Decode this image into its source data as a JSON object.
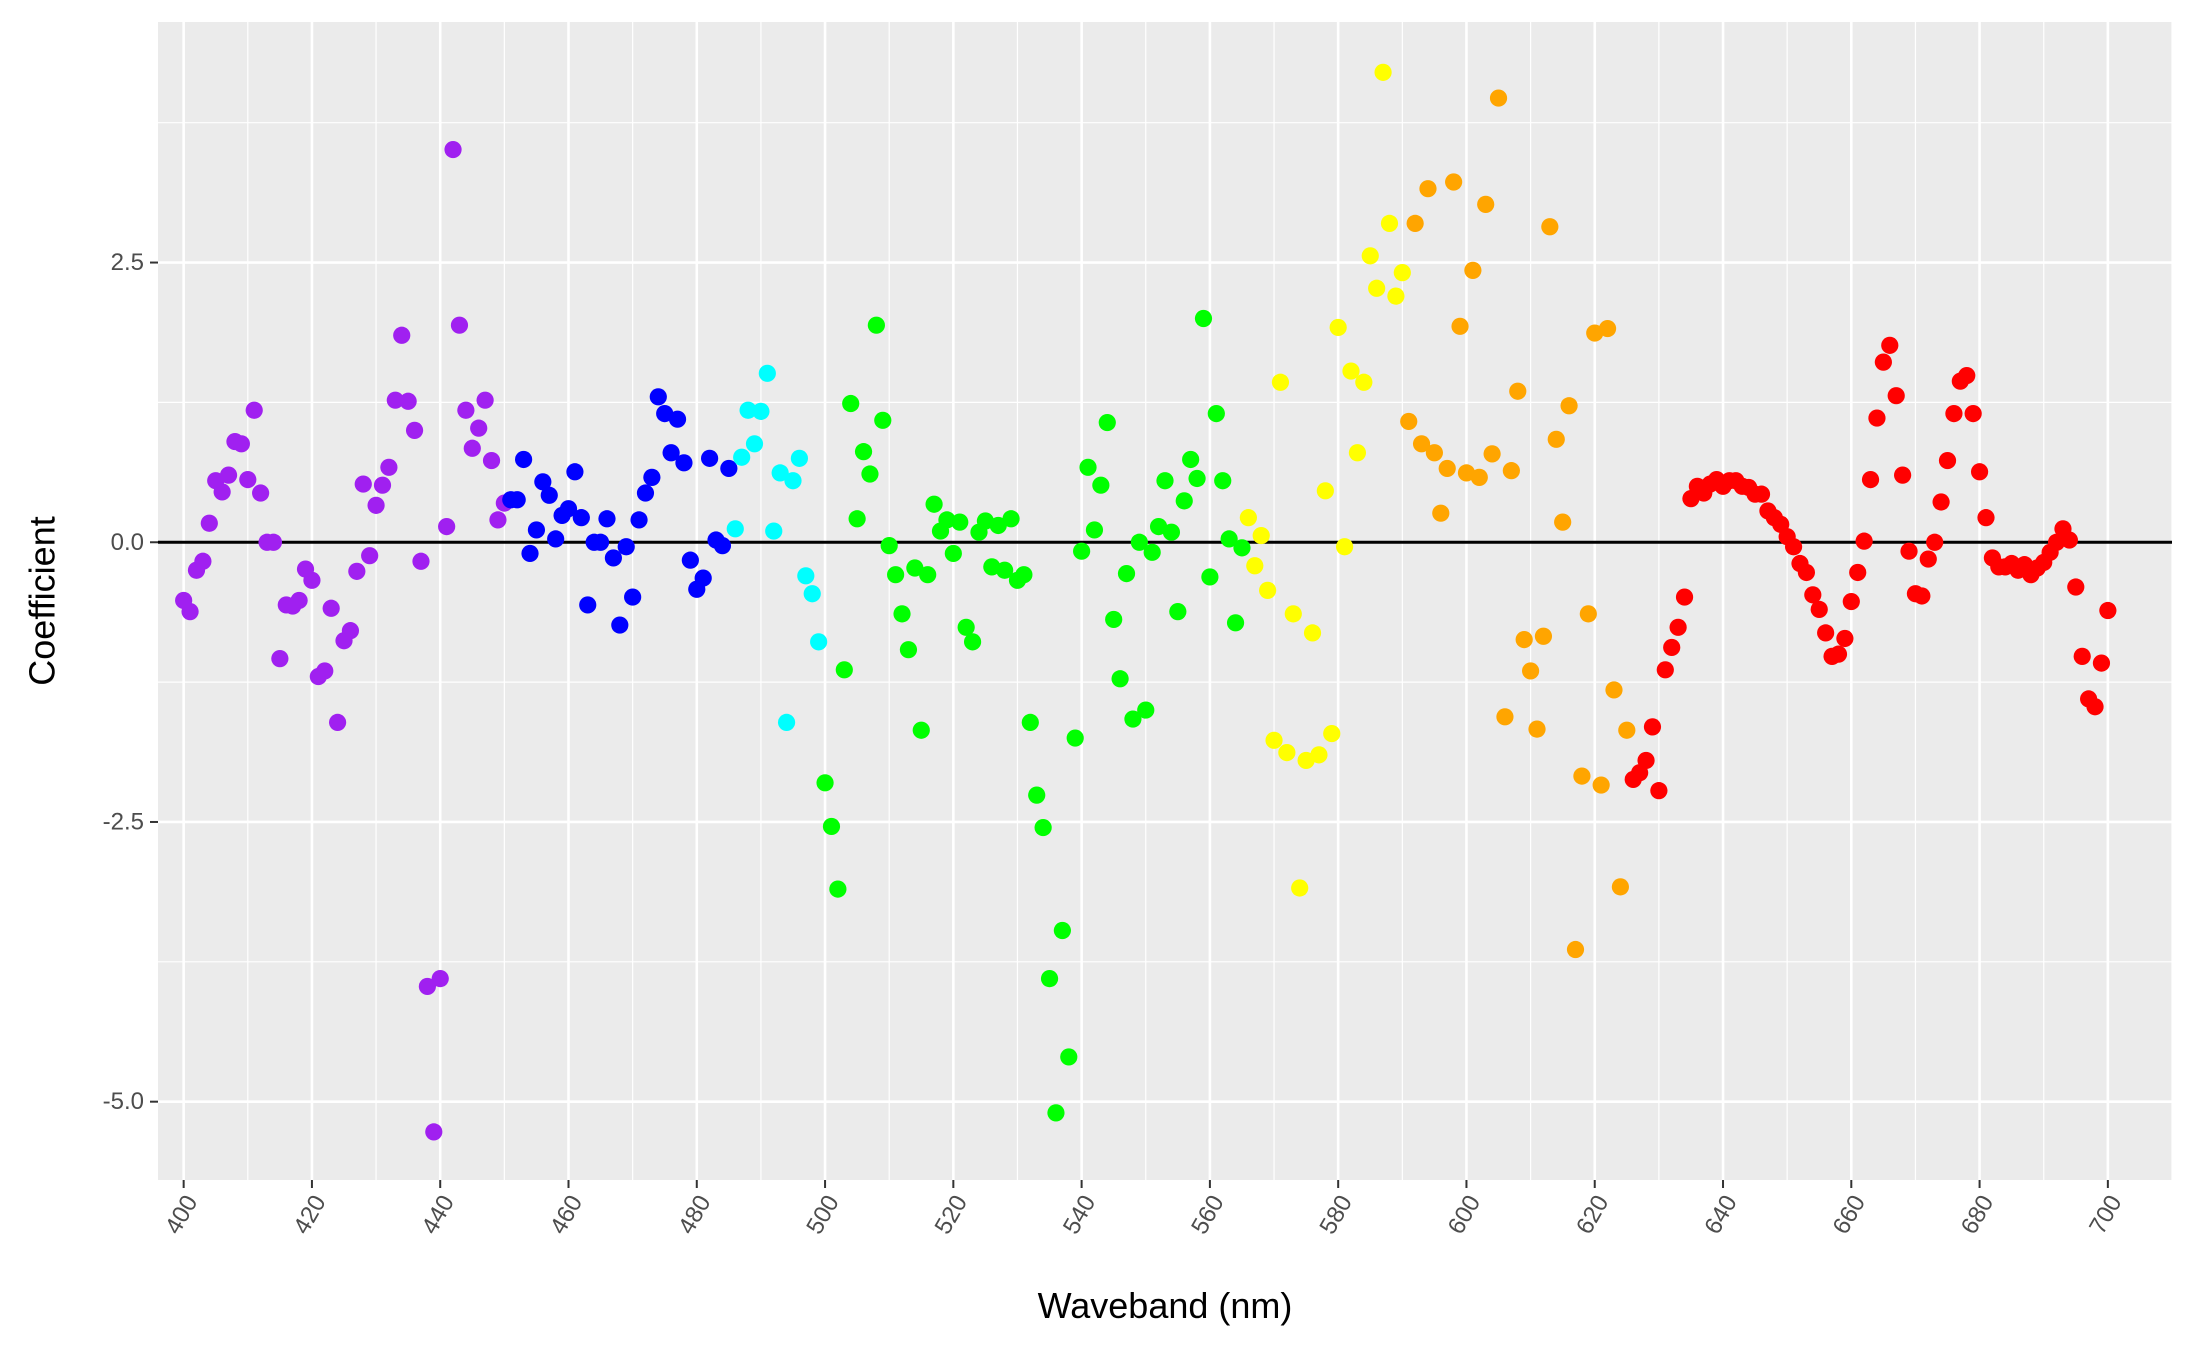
{
  "chart_data": {
    "type": "scatter",
    "title": "",
    "xlabel": "Waveband (nm)",
    "ylabel": "Coefficient",
    "xlim": [
      396,
      710
    ],
    "ylim": [
      -5.7,
      4.65
    ],
    "xticks": [
      400,
      420,
      440,
      460,
      480,
      500,
      520,
      540,
      560,
      580,
      600,
      620,
      640,
      660,
      680,
      700
    ],
    "xtick_labels": [
      "400",
      "420",
      "440",
      "460",
      "480",
      "500",
      "520",
      "540",
      "560",
      "580",
      "600",
      "620",
      "640",
      "660",
      "680",
      "700"
    ],
    "yticks": [
      -5.0,
      -2.5,
      0.0,
      2.5
    ],
    "ytick_labels": [
      "-5.0",
      "-2.5",
      "0.0",
      "2.5"
    ],
    "x_tick_rotation": -60,
    "grid": true,
    "background": "#ebebeb",
    "reference_line": {
      "y": 0,
      "color": "#000000"
    },
    "legend": "none",
    "color_bands": [
      {
        "from": 400,
        "to": 450,
        "color": "#a020f0"
      },
      {
        "from": 451,
        "to": 485,
        "color": "#0000ff"
      },
      {
        "from": 486,
        "to": 499,
        "color": "#00ffff"
      },
      {
        "from": 500,
        "to": 565,
        "color": "#00ff00"
      },
      {
        "from": 566,
        "to": 590,
        "color": "#ffff00"
      },
      {
        "from": 591,
        "to": 625,
        "color": "#ffa500"
      },
      {
        "from": 626,
        "to": 700,
        "color": "#ff0000"
      }
    ],
    "x": [
      400,
      401,
      402,
      403,
      404,
      405,
      406,
      407,
      408,
      409,
      410,
      411,
      412,
      413,
      414,
      415,
      416,
      417,
      418,
      419,
      420,
      421,
      422,
      423,
      424,
      425,
      426,
      427,
      428,
      429,
      430,
      431,
      432,
      433,
      434,
      435,
      436,
      437,
      438,
      439,
      440,
      441,
      442,
      443,
      444,
      445,
      446,
      447,
      448,
      449,
      450,
      451,
      452,
      453,
      454,
      455,
      456,
      457,
      458,
      459,
      460,
      461,
      462,
      463,
      464,
      465,
      466,
      467,
      468,
      469,
      470,
      471,
      472,
      473,
      474,
      475,
      476,
      477,
      478,
      479,
      480,
      481,
      482,
      483,
      484,
      485,
      486,
      487,
      488,
      489,
      490,
      491,
      492,
      493,
      494,
      495,
      496,
      497,
      498,
      499,
      500,
      501,
      502,
      503,
      504,
      505,
      506,
      507,
      508,
      509,
      510,
      511,
      512,
      513,
      514,
      515,
      516,
      517,
      518,
      519,
      520,
      521,
      522,
      523,
      524,
      525,
      526,
      527,
      528,
      529,
      530,
      531,
      532,
      533,
      534,
      535,
      536,
      537,
      538,
      539,
      540,
      541,
      542,
      543,
      544,
      545,
      546,
      547,
      548,
      549,
      550,
      551,
      552,
      553,
      554,
      555,
      556,
      557,
      558,
      559,
      560,
      561,
      562,
      563,
      564,
      565,
      566,
      567,
      568,
      569,
      570,
      571,
      572,
      573,
      574,
      575,
      576,
      577,
      578,
      579,
      580,
      581,
      582,
      583,
      584,
      585,
      586,
      587,
      588,
      589,
      590,
      591,
      592,
      593,
      594,
      595,
      596,
      597,
      598,
      599,
      600,
      601,
      602,
      603,
      604,
      605,
      606,
      607,
      608,
      609,
      610,
      611,
      612,
      613,
      614,
      615,
      616,
      617,
      618,
      619,
      620,
      621,
      622,
      623,
      624,
      625,
      626,
      627,
      628,
      629,
      630,
      631,
      632,
      633,
      634,
      635,
      636,
      637,
      638,
      639,
      640,
      641,
      642,
      643,
      644,
      645,
      646,
      647,
      648,
      649,
      650,
      651,
      652,
      653,
      654,
      655,
      656,
      657,
      658,
      659,
      660,
      661,
      662,
      663,
      664,
      665,
      666,
      667,
      668,
      669,
      670,
      671,
      672,
      673,
      674,
      675,
      676,
      677,
      678,
      679,
      680,
      681,
      682,
      683,
      684,
      685,
      686,
      687,
      688,
      689,
      690,
      691,
      692,
      693,
      694,
      695,
      696,
      697,
      698,
      699,
      700
    ],
    "y": [
      -0.52,
      -0.62,
      -0.25,
      -0.17,
      0.17,
      0.55,
      0.45,
      0.6,
      0.9,
      0.88,
      0.56,
      1.18,
      0.44,
      0.0,
      0.0,
      -1.04,
      -0.56,
      -0.57,
      -0.52,
      -0.24,
      -0.34,
      -1.2,
      -1.15,
      -0.59,
      -1.61,
      -0.88,
      -0.79,
      -0.26,
      0.52,
      -0.12,
      0.33,
      0.51,
      0.67,
      1.27,
      1.85,
      1.26,
      1.0,
      -0.17,
      -3.97,
      -5.27,
      -3.9,
      0.14,
      3.51,
      1.94,
      1.18,
      0.84,
      1.02,
      1.27,
      0.73,
      0.2,
      0.35,
      0.38,
      0.38,
      0.74,
      -0.1,
      0.11,
      0.54,
      0.42,
      0.03,
      0.24,
      0.3,
      0.63,
      0.22,
      -0.56,
      0.0,
      0.0,
      0.21,
      -0.14,
      -0.74,
      -0.04,
      -0.49,
      0.2,
      0.44,
      0.58,
      1.3,
      1.15,
      0.8,
      1.1,
      0.71,
      -0.16,
      -0.42,
      -0.32,
      0.75,
      0.02,
      -0.03,
      0.66,
      0.12,
      0.76,
      1.18,
      0.88,
      1.17,
      1.51,
      0.1,
      0.62,
      -1.61,
      0.55,
      0.75,
      -0.3,
      -0.46,
      -0.89,
      -2.15,
      -2.54,
      -3.1,
      -1.14,
      1.24,
      0.21,
      0.81,
      0.61,
      1.94,
      1.09,
      -0.03,
      -0.29,
      -0.64,
      -0.96,
      -0.23,
      -1.68,
      -0.29,
      0.34,
      0.1,
      0.2,
      -0.1,
      0.18,
      -0.76,
      -0.89,
      0.09,
      0.19,
      -0.22,
      0.15,
      -0.25,
      0.21,
      -0.34,
      -0.29,
      -1.61,
      -2.26,
      -2.55,
      -3.9,
      -5.1,
      -3.47,
      -4.6,
      -1.75,
      -0.08,
      0.67,
      0.11,
      0.51,
      1.07,
      -0.69,
      -1.22,
      -0.28,
      -1.58,
      0.0,
      -1.5,
      -0.09,
      0.14,
      0.55,
      0.09,
      -0.62,
      0.37,
      0.74,
      0.57,
      2.0,
      -0.31,
      1.15,
      0.55,
      0.03,
      -0.72,
      -0.05,
      0.22,
      -0.21,
      0.06,
      -0.43,
      -1.77,
      1.43,
      -1.88,
      -0.64,
      -3.09,
      -1.95,
      -0.81,
      -1.9,
      0.46,
      -1.71,
      1.92,
      -0.04,
      1.53,
      0.8,
      1.43,
      2.56,
      2.27,
      4.2,
      2.85,
      2.2,
      2.41,
      1.08,
      2.85,
      0.88,
      3.16,
      0.8,
      0.26,
      0.66,
      3.22,
      1.93,
      0.62,
      2.43,
      0.58,
      3.02,
      0.79,
      3.97,
      -1.56,
      0.64,
      1.35,
      -0.87,
      -1.15,
      -1.67,
      -0.84,
      2.82,
      0.92,
      0.18,
      1.22,
      -3.64,
      -2.09,
      -0.64,
      1.87,
      -2.17,
      1.91,
      -1.32,
      -3.08,
      -1.68,
      -2.12,
      -2.06,
      -1.95,
      -1.65,
      -2.22,
      -1.14,
      -0.94,
      -0.76,
      -0.49,
      0.39,
      0.5,
      0.44,
      0.52,
      0.56,
      0.5,
      0.55,
      0.55,
      0.5,
      0.49,
      0.43,
      0.43,
      0.28,
      0.22,
      0.16,
      0.05,
      -0.04,
      -0.19,
      -0.27,
      -0.47,
      -0.6,
      -0.81,
      -1.02,
      -1.0,
      -0.86,
      -0.53,
      -0.27,
      0.01,
      0.56,
      1.11,
      1.61,
      1.76,
      1.31,
      0.6,
      -0.08,
      -0.46,
      -0.48,
      -0.15,
      0.0,
      0.36,
      0.73,
      1.15,
      1.44,
      1.49,
      1.15,
      0.63,
      0.22,
      -0.14,
      -0.22,
      -0.22,
      -0.19,
      -0.25,
      -0.2,
      -0.29,
      -0.23,
      -0.18,
      -0.09,
      0.0,
      0.12,
      0.02,
      -0.4,
      -1.02,
      -1.4,
      -1.47,
      -1.08,
      -0.61
    ]
  }
}
